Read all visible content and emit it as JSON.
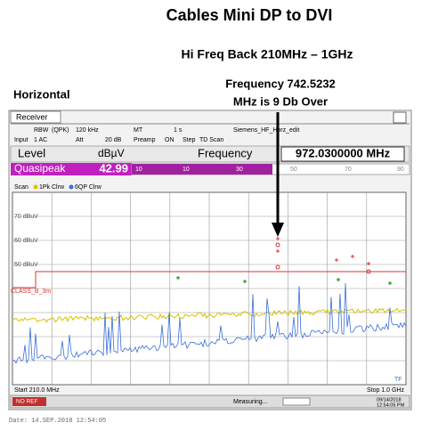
{
  "title": "Cables Mini DP to DVI",
  "subtitle": "Hi Freq Back  210MHz – 1GHz",
  "orientation": "Horizontal",
  "annotation": [
    "Frequency 742.5232",
    "MHz is 9 Db Over"
  ],
  "window": {
    "tab": "Receiver",
    "settings": [
      [
        "RBW",
        "(QPK)",
        "120 kHz",
        "MT",
        "1 s",
        "Siemens_HF_Horz_edit"
      ],
      [
        "Input",
        "1 AC",
        "Att",
        "20 dB",
        "Preamp",
        "ON",
        "Step",
        "TD Scan"
      ]
    ],
    "level_label": "Level",
    "unit": "dBµV",
    "frequency_label": "Frequency",
    "frequency": "972.0300000 MHz",
    "detector": "Quasipeak",
    "reading": "42.99",
    "bar_scale": [
      "10",
      "10",
      "30",
      "50",
      "70",
      "90"
    ],
    "scan": [
      "Scan",
      "1Pk Clrw",
      "6QP Clrw"
    ],
    "y_labels": [
      "70 dBuV",
      "60 dBuV",
      "50 dBuV"
    ],
    "limit_label": "CLASS_B_3m",
    "marker": "TF",
    "start": "Start 210.0 MHz",
    "stop": "Stop 1.0 GHz",
    "status": [
      "NO REF",
      "Measuring...",
      "09/14/2018",
      "12:54:05 PM"
    ]
  },
  "footer": "Date: 14.SEP.2018  12:54:05"
}
